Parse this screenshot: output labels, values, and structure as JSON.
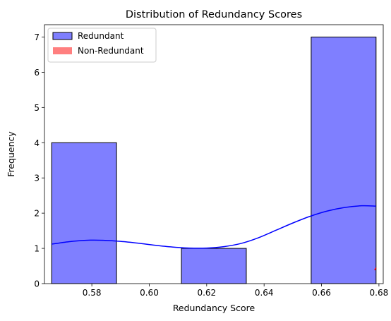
{
  "chart_data": {
    "type": "bar",
    "title": "Distribution of Redundancy Scores",
    "xlabel": "Redundancy Score",
    "ylabel": "Frequency",
    "xlim": [
      0.5635,
      0.6815
    ],
    "ylim": [
      0,
      7.35
    ],
    "xticks": [
      0.58,
      0.6,
      0.62,
      0.64,
      0.66,
      0.68
    ],
    "xtick_labels": [
      "0.58",
      "0.60",
      "0.62",
      "0.64",
      "0.66",
      "0.68"
    ],
    "yticks": [
      0,
      1,
      2,
      3,
      4,
      5,
      6,
      7
    ],
    "ytick_labels": [
      "0",
      "1",
      "2",
      "3",
      "4",
      "5",
      "6",
      "7"
    ],
    "grid": false,
    "legend_position": "top-left",
    "series": [
      {
        "name": "Redundant",
        "kind": "histogram",
        "color": "#0000ff",
        "fill_opacity": 0.5,
        "edge_color": "#000000",
        "bins": [
          {
            "start": 0.566,
            "end": 0.5886,
            "count": 4
          },
          {
            "start": 0.5886,
            "end": 0.6112,
            "count": 0
          },
          {
            "start": 0.6112,
            "end": 0.6338,
            "count": 1
          },
          {
            "start": 0.6338,
            "end": 0.6564,
            "count": 0
          },
          {
            "start": 0.6564,
            "end": 0.679,
            "count": 7
          }
        ],
        "kde": {
          "color": "#0000ff",
          "x": [
            0.566,
            0.572,
            0.578,
            0.584,
            0.59,
            0.596,
            0.602,
            0.608,
            0.614,
            0.62,
            0.626,
            0.632,
            0.638,
            0.644,
            0.65,
            0.656,
            0.662,
            0.668,
            0.674,
            0.679
          ],
          "y": [
            1.12,
            1.19,
            1.23,
            1.23,
            1.2,
            1.15,
            1.09,
            1.04,
            1.01,
            1.01,
            1.05,
            1.14,
            1.3,
            1.51,
            1.72,
            1.91,
            2.06,
            2.16,
            2.21,
            2.2
          ]
        }
      },
      {
        "name": "Non-Redundant",
        "kind": "histogram",
        "color": "#ff0000",
        "fill_opacity": 0.5,
        "bins": [],
        "kde": {
          "color": "#ff0000",
          "x": [
            0.6785,
            0.679
          ],
          "y": [
            0.38,
            0.45
          ]
        }
      }
    ]
  }
}
